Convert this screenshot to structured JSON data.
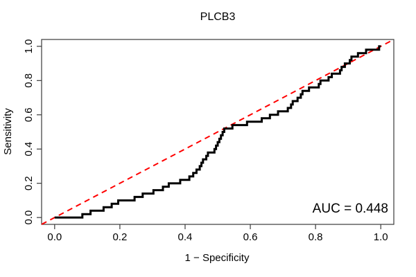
{
  "title": "PLCB3",
  "annotation": {
    "auc_label": "AUC = 0.448"
  },
  "colors": {
    "curve": "#000000",
    "diagonal": "#ff0000",
    "axis": "#3a3a3a",
    "text": "#000000",
    "background": "#ffffff"
  },
  "chart_data": {
    "type": "line",
    "subtype": "roc-step-curve",
    "title": "PLCB3",
    "xlabel": "1 − Specificity",
    "ylabel": "Sensitivity",
    "xlim": [
      0,
      1
    ],
    "ylim": [
      0,
      1
    ],
    "axis_padding": 0.04,
    "grid": false,
    "legend_position": "none",
    "auc": 0.448,
    "x_ticks": [
      "0.0",
      "0.2",
      "0.4",
      "0.6",
      "0.8",
      "1.0"
    ],
    "y_ticks": [
      "0.0",
      "0.2",
      "0.4",
      "0.6",
      "0.8",
      "1.0"
    ],
    "x_tick_values": [
      0,
      0.2,
      0.4,
      0.6,
      0.8,
      1.0
    ],
    "y_tick_values": [
      0,
      0.2,
      0.4,
      0.6,
      0.8,
      1.0
    ],
    "series": [
      {
        "name": "ROC curve PLCB3",
        "style": "step-solid",
        "color": "#000000",
        "line_width": 3,
        "points": [
          [
            0.0,
            0.0
          ],
          [
            0.085,
            0.02
          ],
          [
            0.11,
            0.04
          ],
          [
            0.15,
            0.06
          ],
          [
            0.175,
            0.08
          ],
          [
            0.195,
            0.1
          ],
          [
            0.245,
            0.12
          ],
          [
            0.27,
            0.14
          ],
          [
            0.303,
            0.16
          ],
          [
            0.332,
            0.18
          ],
          [
            0.35,
            0.2
          ],
          [
            0.385,
            0.22
          ],
          [
            0.413,
            0.24
          ],
          [
            0.425,
            0.26
          ],
          [
            0.435,
            0.28
          ],
          [
            0.445,
            0.3
          ],
          [
            0.45,
            0.32
          ],
          [
            0.455,
            0.34
          ],
          [
            0.465,
            0.36
          ],
          [
            0.47,
            0.38
          ],
          [
            0.49,
            0.4
          ],
          [
            0.495,
            0.42
          ],
          [
            0.5,
            0.44
          ],
          [
            0.505,
            0.46
          ],
          [
            0.51,
            0.48
          ],
          [
            0.515,
            0.5
          ],
          [
            0.52,
            0.52
          ],
          [
            0.545,
            0.54
          ],
          [
            0.59,
            0.56
          ],
          [
            0.635,
            0.58
          ],
          [
            0.66,
            0.6
          ],
          [
            0.685,
            0.62
          ],
          [
            0.715,
            0.64
          ],
          [
            0.725,
            0.66
          ],
          [
            0.73,
            0.68
          ],
          [
            0.745,
            0.7
          ],
          [
            0.755,
            0.72
          ],
          [
            0.76,
            0.74
          ],
          [
            0.78,
            0.76
          ],
          [
            0.81,
            0.78
          ],
          [
            0.815,
            0.8
          ],
          [
            0.84,
            0.82
          ],
          [
            0.85,
            0.84
          ],
          [
            0.875,
            0.86
          ],
          [
            0.88,
            0.88
          ],
          [
            0.89,
            0.9
          ],
          [
            0.905,
            0.92
          ],
          [
            0.91,
            0.94
          ],
          [
            0.93,
            0.96
          ],
          [
            0.955,
            0.98
          ],
          [
            0.995,
            1.0
          ],
          [
            1.0,
            1.0
          ]
        ]
      },
      {
        "name": "chance reference diagonal",
        "style": "dashed",
        "color": "#ff0000",
        "line_width": 2,
        "extends_full_range": true,
        "points": [
          [
            0,
            0
          ],
          [
            1,
            1
          ]
        ]
      }
    ]
  }
}
